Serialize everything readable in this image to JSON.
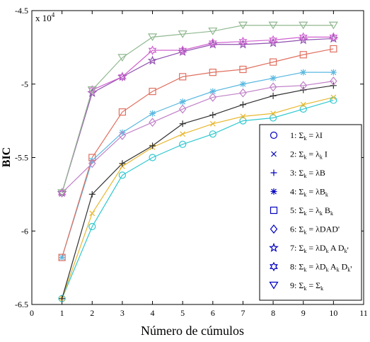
{
  "chart_data": {
    "type": "line",
    "xlabel": "Número de cúmulos",
    "ylabel": "BIC",
    "exponent": "x 10",
    "exponent_power": "4",
    "xlim": [
      0,
      11
    ],
    "ylim": [
      -6.5,
      -4.5
    ],
    "x_ticks": [
      0,
      1,
      2,
      3,
      4,
      5,
      6,
      7,
      8,
      9,
      10,
      11
    ],
    "y_ticks": [
      -6.5,
      -6,
      -5.5,
      -5,
      -4.5
    ],
    "y_tick_labels": [
      "-6.5",
      "-6",
      "-5.5",
      "-5",
      "-4.5"
    ],
    "grid": false,
    "legend_position": "bottom-right",
    "x": [
      1,
      2,
      3,
      4,
      5,
      6,
      7,
      8,
      9,
      10
    ],
    "series": [
      {
        "name": "1: Σk = λI",
        "marker": "circle",
        "color": "#30c8d0",
        "values": [
          -6.46,
          -5.97,
          -5.62,
          -5.5,
          -5.41,
          -5.34,
          -5.25,
          -5.23,
          -5.17,
          -5.11
        ]
      },
      {
        "name": "2: Σk = λkI",
        "marker": "x",
        "color": "#e8b830",
        "values": [
          -6.46,
          -5.88,
          -5.56,
          -5.43,
          -5.34,
          -5.27,
          -5.22,
          -5.2,
          -5.14,
          -5.09
        ]
      },
      {
        "name": "3: Σk = λB",
        "marker": "plus",
        "color": "#303030",
        "values": [
          -6.46,
          -5.75,
          -5.54,
          -5.42,
          -5.27,
          -5.21,
          -5.14,
          -5.08,
          -5.04,
          -5.01
        ]
      },
      {
        "name": "4: Σk = λBk",
        "marker": "asterisk",
        "color": "#5ab8e0",
        "values": [
          -6.18,
          -5.52,
          -5.33,
          -5.2,
          -5.12,
          -5.05,
          -5.0,
          -4.96,
          -4.92,
          -4.92
        ]
      },
      {
        "name": "5: Σk = λkBk",
        "marker": "square",
        "color": "#e07060",
        "values": [
          -6.18,
          -5.5,
          -5.19,
          -5.05,
          -4.95,
          -4.92,
          -4.9,
          -4.85,
          -4.8,
          -4.76
        ]
      },
      {
        "name": "6: Σk = λDAD'",
        "marker": "diamond",
        "color": "#c080c8",
        "values": [
          -5.74,
          -5.54,
          -5.35,
          -5.26,
          -5.17,
          -5.09,
          -5.06,
          -5.02,
          -5.01,
          -4.98
        ]
      },
      {
        "name": "7: Σk = λDkADk'",
        "marker": "pentagram",
        "color": "#9050b0",
        "values": [
          -5.74,
          -5.06,
          -4.95,
          -4.84,
          -4.78,
          -4.73,
          -4.73,
          -4.72,
          -4.7,
          -4.69
        ]
      },
      {
        "name": "8: Σk = λDkAkDk'",
        "marker": "hexagram",
        "color": "#d060d0",
        "values": [
          -5.74,
          -5.04,
          -4.95,
          -4.77,
          -4.77,
          -4.72,
          -4.71,
          -4.7,
          -4.68,
          -4.68
        ]
      },
      {
        "name": "9: Σk = Σk",
        "marker": "triangle-down",
        "color": "#90b890",
        "values": [
          -5.74,
          -5.04,
          -4.82,
          -4.68,
          -4.66,
          -4.64,
          -4.6,
          -4.6,
          -4.6,
          -4.6
        ]
      }
    ],
    "legend_entries": [
      {
        "num": "1:",
        "sub": "k",
        "rhs": "= λI",
        "rhs_sub": "",
        "rhs_tail": ""
      },
      {
        "num": "2:",
        "sub": "k",
        "rhs": "= λ",
        "rhs_sub": "k",
        "rhs_tail": " I"
      },
      {
        "num": "3:",
        "sub": "k",
        "rhs": "= λB",
        "rhs_sub": "",
        "rhs_tail": ""
      },
      {
        "num": "4:",
        "sub": "k",
        "rhs": "= λB",
        "rhs_sub": "k",
        "rhs_tail": ""
      },
      {
        "num": "5:",
        "sub": "k",
        "rhs": "= λ",
        "rhs_sub": "k",
        "rhs_tail": " B",
        "tail_sub": "k"
      },
      {
        "num": "6:",
        "sub": "k",
        "rhs": "= λDAD'",
        "rhs_sub": "",
        "rhs_tail": ""
      },
      {
        "num": "7:",
        "sub": "k",
        "rhs": "= λD",
        "rhs_sub": "k",
        "rhs_tail": " A D",
        "tail_sub": "k",
        "tail_end": "'"
      },
      {
        "num": "8:",
        "sub": "k",
        "rhs": "= λD",
        "rhs_sub": "k",
        "rhs_tail": " A",
        "tail_sub": "k",
        "tail2": " D",
        "tail2_sub": "k",
        "tail_end": "'"
      },
      {
        "num": "9:",
        "sub": "k",
        "rhs": "= Σ",
        "rhs_sub": "k",
        "rhs_tail": ""
      }
    ]
  }
}
